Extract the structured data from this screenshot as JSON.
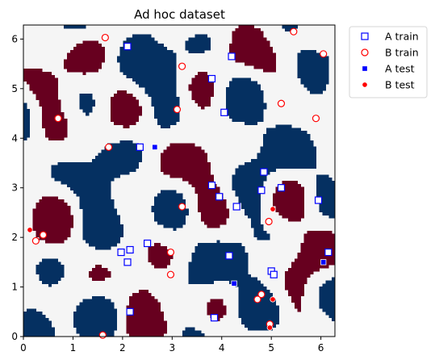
{
  "chart_data": {
    "type": "scatter",
    "title": "Ad hoc dataset",
    "xlabel": "",
    "ylabel": "",
    "xlim": [
      0,
      6.283
    ],
    "ylim": [
      0,
      6.283
    ],
    "x_ticks": [
      "0",
      "1",
      "2",
      "3",
      "4",
      "5",
      "6"
    ],
    "y_ticks": [
      "0",
      "1",
      "2",
      "3",
      "4",
      "5",
      "6"
    ],
    "x_tick_values": [
      0,
      1,
      2,
      3,
      4,
      5,
      6
    ],
    "y_tick_values": [
      0,
      1,
      2,
      3,
      4,
      5,
      6
    ],
    "grid": false,
    "legend_position": "outside-top-right",
    "background": {
      "description": "Region map shown as colored cells",
      "class_a_color": "#053061",
      "class_b_color": "#67001f",
      "neutral_color": "#f5f5f5",
      "grid_resolution": 100
    },
    "series": [
      {
        "name": "A train",
        "marker": "square-open",
        "color": "#0000ff",
        "points": [
          [
            2.1,
            5.85
          ],
          [
            4.2,
            5.65
          ],
          [
            3.8,
            5.2
          ],
          [
            4.05,
            4.52
          ],
          [
            2.35,
            3.82
          ],
          [
            4.85,
            3.32
          ],
          [
            3.8,
            3.05
          ],
          [
            5.2,
            3.0
          ],
          [
            4.8,
            2.95
          ],
          [
            3.95,
            2.82
          ],
          [
            4.3,
            2.62
          ],
          [
            5.95,
            2.75
          ],
          [
            2.5,
            1.88
          ],
          [
            2.15,
            1.75
          ],
          [
            1.97,
            1.7
          ],
          [
            6.15,
            1.7
          ],
          [
            4.15,
            1.63
          ],
          [
            2.1,
            1.5
          ],
          [
            5.0,
            1.32
          ],
          [
            5.05,
            1.25
          ],
          [
            2.15,
            0.5
          ],
          [
            3.85,
            0.38
          ]
        ]
      },
      {
        "name": "B train",
        "marker": "circle-open",
        "color": "#ff0000",
        "points": [
          [
            1.65,
            6.03
          ],
          [
            5.45,
            6.15
          ],
          [
            6.05,
            5.7
          ],
          [
            3.2,
            5.45
          ],
          [
            5.2,
            4.7
          ],
          [
            3.1,
            4.58
          ],
          [
            0.7,
            4.4
          ],
          [
            5.9,
            4.4
          ],
          [
            1.72,
            3.82
          ],
          [
            3.2,
            2.62
          ],
          [
            4.95,
            2.32
          ],
          [
            0.4,
            2.05
          ],
          [
            0.25,
            1.93
          ],
          [
            2.97,
            1.7
          ],
          [
            2.97,
            1.25
          ],
          [
            4.8,
            0.85
          ],
          [
            4.72,
            0.75
          ],
          [
            4.97,
            0.25
          ],
          [
            1.6,
            0.03
          ]
        ]
      },
      {
        "name": "A test",
        "marker": "square-filled",
        "color": "#0000ff",
        "points": [
          [
            2.65,
            3.82
          ],
          [
            4.25,
            1.07
          ],
          [
            6.05,
            1.5
          ]
        ]
      },
      {
        "name": "B test",
        "marker": "circle-filled",
        "color": "#ff0000",
        "points": [
          [
            0.13,
            2.15
          ],
          [
            5.03,
            2.57
          ],
          [
            5.03,
            0.75
          ],
          [
            4.97,
            0.18
          ]
        ]
      }
    ]
  }
}
